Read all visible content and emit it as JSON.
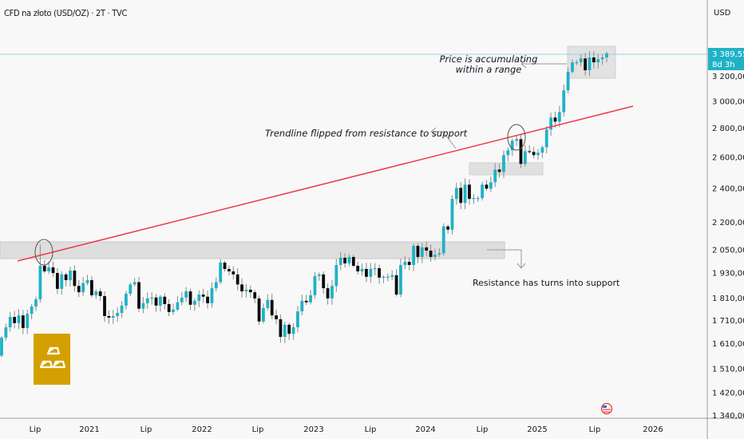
{
  "header": {
    "title": "CFD na złoto (USD/OZ) · 2T · TVC"
  },
  "axis": {
    "currency": "USD"
  },
  "price_label": {
    "value": "3 389,553",
    "countdown": "8d 3h"
  },
  "colors": {
    "up": "#1fb2c7",
    "down": "#0b0b0b",
    "trendline": "#ef3b4a",
    "zone": "#d9d9d9",
    "logo": "#d4a000",
    "price_line": "#1fb2c7"
  },
  "icons": {
    "logo": "gold-bars-icon",
    "flag": "us-flag-icon"
  },
  "annotations": {
    "trendline_text": "Trendline flipped from  resistance to support",
    "range_text_1": "Price is accumulating",
    "range_text_2": "within a range",
    "support_text": "Resistance has turns into support"
  },
  "chart_data": {
    "type": "candlestick",
    "interval": "2T",
    "yscale": "log",
    "ylim": [
      1340,
      3200
    ],
    "yticks": [
      {
        "value": 3200,
        "label": "3 200,000"
      },
      {
        "value": 3000,
        "label": "3 000,000"
      },
      {
        "value": 2800,
        "label": "2 800,000"
      },
      {
        "value": 2600,
        "label": "2 600,000"
      },
      {
        "value": 2400,
        "label": "2 400,000"
      },
      {
        "value": 2200,
        "label": "2 200,000"
      },
      {
        "value": 2050,
        "label": "2 050,000"
      },
      {
        "value": 1930,
        "label": "1 930,000"
      },
      {
        "value": 1810,
        "label": "1 810,000"
      },
      {
        "value": 1710,
        "label": "1 710,000"
      },
      {
        "value": 1610,
        "label": "1 610,000"
      },
      {
        "value": 1510,
        "label": "1 510,000"
      },
      {
        "value": 1420,
        "label": "1 420,000"
      },
      {
        "value": 1340,
        "label": "1 340,000"
      }
    ],
    "xticks": [
      "Lip",
      "2021",
      "Lip",
      "2022",
      "Lip",
      "2023",
      "Lip",
      "2024",
      "Lip",
      "2025",
      "Lip",
      "2026"
    ],
    "first_open": 1560,
    "closes": [
      1634,
      1678,
      1723,
      1696,
      1730,
      1675,
      1737,
      1770,
      1803,
      1965,
      1937,
      1957,
      1929,
      1852,
      1922,
      1894,
      1941,
      1866,
      1836,
      1880,
      1894,
      1822,
      1840,
      1818,
      1727,
      1720,
      1727,
      1741,
      1774,
      1829,
      1873,
      1884,
      1760,
      1785,
      1807,
      1811,
      1774,
      1815,
      1781,
      1745,
      1756,
      1789,
      1811,
      1840,
      1778,
      1796,
      1825,
      1815,
      1785,
      1855,
      1884,
      1981,
      1949,
      1937,
      1922,
      1873,
      1840,
      1848,
      1836,
      1807,
      1703,
      1763,
      1800,
      1730,
      1713,
      1637,
      1689,
      1650,
      1678,
      1748,
      1796,
      1789,
      1822,
      1914,
      1922,
      1855,
      1807,
      1866,
      1969,
      2006,
      1977,
      2010,
      1965,
      1937,
      1949,
      1910,
      1949,
      1953,
      1906,
      1910,
      1910,
      1918,
      1825,
      1969,
      1985,
      1969,
      2068,
      2010,
      2060,
      2043,
      2010,
      2022,
      2029,
      2174,
      2156,
      2333,
      2400,
      2309,
      2420,
      2333,
      2338,
      2338,
      2420,
      2395,
      2435,
      2516,
      2500,
      2611,
      2643,
      2709,
      2720,
      2552,
      2637,
      2632,
      2611,
      2627,
      2664,
      2788,
      2875,
      2845,
      2916,
      3083,
      3233,
      3313,
      3313,
      3346,
      3246,
      3355,
      3313,
      3340,
      3355,
      3389.553
    ],
    "last_price": 3389.553
  }
}
